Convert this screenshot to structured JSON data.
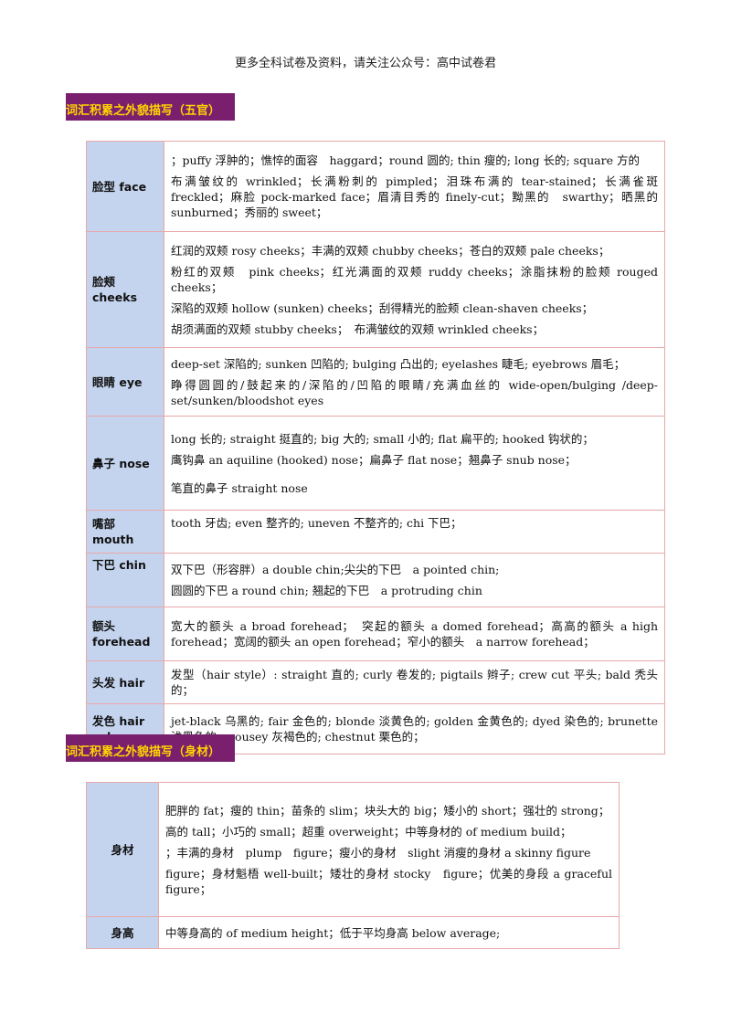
{
  "header_note": "更多全科试卷及资料，请关注公众号：高中试卷君",
  "section1": {
    "title": "词汇积累之外貌描写（五官）",
    "rows": [
      {
        "label": "脸型 face",
        "lines": [
          "；puffy 浮肿的；憔悴的面容　haggard；round 圆的; thin 瘦的; long 长的; square 方的",
          "布满皱纹的 wrinkled；长满粉刺的 pimpled；泪珠布满的 tear-stained；长满雀斑 freckled；麻脸 pock-marked face；眉清目秀的 finely-cut；黝黑的　swarthy；晒黑的　sunburned；秀丽的 sweet；"
        ]
      },
      {
        "label": "脸颊 cheeks",
        "lines": [
          "红润的双颊 rosy cheeks；丰满的双颊 chubby cheeks；苍白的双颊 pale cheeks；",
          "粉红的双颊　pink cheeks；红光满面的双颊 ruddy cheeks；涂脂抹粉的脸颊 rouged cheeks；",
          "深陷的双颊 hollow (sunken) cheeks；刮得精光的脸颊 clean-shaven cheeks；",
          "胡须满面的双颊 stubby cheeks；　布满皱纹的双颊 wrinkled cheeks；"
        ]
      },
      {
        "label": "眼睛 eye",
        "lines": [
          "deep-set 深陷的; sunken 凹陷的; bulging 凸出的; eyelashes 睫毛; eyebrows 眉毛；",
          "睁得圆圆的/鼓起来的/深陷的/凹陷的眼睛/充满血丝的 wide-open/bulging /deep-set/sunken/bloodshot eyes"
        ]
      },
      {
        "label": "鼻子 nose",
        "lines": [
          "long 长的; straight 挺直的; big 大的; small 小的; flat 扁平的; hooked 钩状的；",
          "鹰钩鼻 an aquiline (hooked) nose；扁鼻子 flat nose；翘鼻子 snub nose；",
          "笔直的鼻子 straight nose"
        ]
      },
      {
        "label": "嘴部 mouth",
        "lines": [
          "tooth 牙齿; even 整齐的; uneven 不整齐的; chi 下巴；"
        ]
      },
      {
        "label": "下巴 chin",
        "lines": [
          "双下巴（形容胖）a double chin;尖尖的下巴　a pointed chin;",
          "圆圆的下巴 a round chin; 翘起的下巴　a protruding chin"
        ]
      },
      {
        "label": "额头 forehead",
        "lines": [
          "宽大的额头 a broad forehead；　突起的额头 a domed forehead；高高的额头 a high forehead；宽阔的额头 an open forehead；窄小的额头　a narrow forehead；"
        ]
      },
      {
        "label": "头发 hair",
        "lines": [
          "发型（hair style）: straight 直的; curly 卷发的; pigtails 辫子; crew cut 平头; bald 秃头的；"
        ]
      },
      {
        "label": "发色 hair color",
        "lines": [
          "jet-black 乌黑的; fair 金色的; blonde 淡黄色的; golden 金黄色的; dyed 染色的; brunette 浅黑色的; mousey 灰褐色的; chestnut 栗色的；"
        ]
      }
    ]
  },
  "section2": {
    "title": "词汇积累之外貌描写（身材）",
    "rows": [
      {
        "label": "身材",
        "lines": [
          "肥胖的 fat；瘦的 thin；苗条的 slim；块头大的 big；矮小的 short；强壮的 strong；",
          "高的 tall；小巧的 small；超重 overweight；中等身材的 of medium build；",
          "；丰满的身材　plump　figure；瘦小的身材　slight 消瘦的身材 a skinny figure",
          "figure；身材魁梧 well-built；矮壮的身材 stocky　figure；优美的身段 a graceful figure；"
        ]
      },
      {
        "label": "身高",
        "lines": [
          "中等身高的 of medium height；低于平均身高 below average;"
        ]
      }
    ]
  }
}
